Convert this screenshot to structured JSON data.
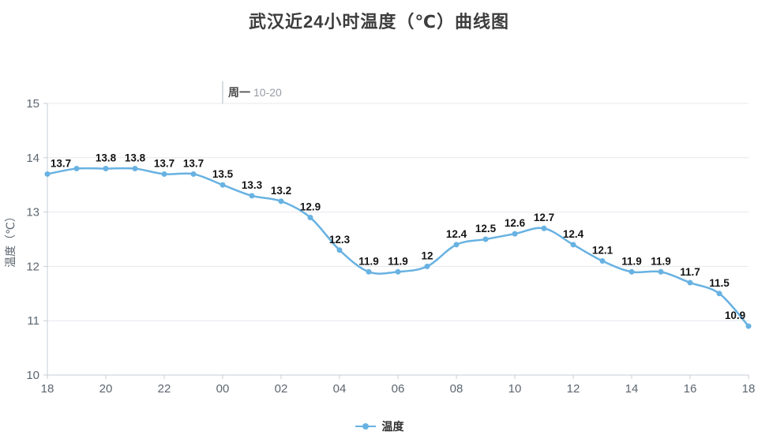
{
  "title": "武汉近24小时温度（℃）曲线图",
  "chart_data": {
    "type": "line",
    "x": [
      "18",
      "19",
      "20",
      "21",
      "22",
      "23",
      "00",
      "01",
      "02",
      "03",
      "04",
      "05",
      "06",
      "07",
      "08",
      "09",
      "10",
      "11",
      "12",
      "13",
      "14",
      "15",
      "16",
      "17",
      "18"
    ],
    "x_tick_labels": [
      "18",
      "20",
      "22",
      "00",
      "02",
      "04",
      "06",
      "08",
      "10",
      "12",
      "14",
      "16",
      "18"
    ],
    "series": [
      {
        "name": "温度",
        "values": [
          13.7,
          13.8,
          13.8,
          13.8,
          13.7,
          13.7,
          13.5,
          13.3,
          13.2,
          12.9,
          12.3,
          11.9,
          11.9,
          12,
          12.4,
          12.5,
          12.6,
          12.7,
          12.4,
          12.1,
          11.9,
          11.9,
          11.7,
          11.5,
          10.9
        ]
      }
    ],
    "hidden_label_indices": [
      1
    ],
    "ylabel": "温度（℃）",
    "ylim": [
      10,
      15
    ],
    "yticks": [
      15,
      14,
      13,
      12,
      11,
      10
    ],
    "line_color": "#68b2e2",
    "colors": {
      "grid": "#e4e8ed",
      "axis": "#c7cdd4",
      "annotation_line": "#b2b8bf"
    },
    "annotation": {
      "weekday": "周一",
      "date": "10-20",
      "x": "00"
    },
    "legend_position": "bottom-center",
    "grid": "horizontal-only"
  }
}
